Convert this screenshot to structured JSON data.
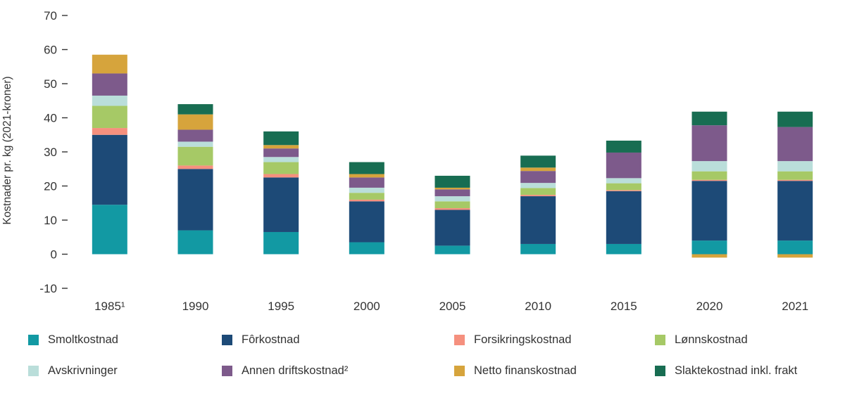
{
  "chart_data": {
    "type": "bar",
    "subtype": "stacked",
    "title": "",
    "xlabel": "",
    "ylabel": "Kostnader pr. kg (2021-kroner)",
    "ylim": [
      -10,
      70
    ],
    "yticks": [
      70,
      60,
      50,
      40,
      30,
      20,
      10,
      0,
      -10
    ],
    "grid": false,
    "legend_position": "bottom",
    "categories": [
      "1985¹",
      "1990",
      "1995",
      "2000",
      "2005",
      "2010",
      "2015",
      "2020",
      "2021"
    ],
    "series": [
      {
        "name": "Smoltkostnad",
        "color": "#1299a3",
        "values": [
          14.5,
          7.0,
          6.5,
          3.5,
          2.5,
          3.0,
          3.0,
          4.0,
          4.0
        ]
      },
      {
        "name": "Fôrkostnad",
        "color": "#1d4a77",
        "values": [
          20.5,
          18.0,
          16.0,
          12.0,
          10.5,
          14.0,
          15.5,
          17.5,
          17.5
        ]
      },
      {
        "name": "Forsikringskostnad",
        "color": "#f5907e",
        "values": [
          2.0,
          1.0,
          1.0,
          0.5,
          0.5,
          0.4,
          0.3,
          0.3,
          0.3
        ]
      },
      {
        "name": "Lønnskostnad",
        "color": "#a6c966",
        "values": [
          6.5,
          5.5,
          3.5,
          2.0,
          2.0,
          2.0,
          2.0,
          2.5,
          2.5
        ]
      },
      {
        "name": "Avskrivninger",
        "color": "#badeda",
        "values": [
          3.0,
          1.5,
          1.5,
          1.5,
          1.5,
          1.5,
          1.5,
          3.0,
          3.0
        ]
      },
      {
        "name": "Annen driftskostnad²",
        "color": "#7d5a8b",
        "values": [
          6.5,
          3.5,
          2.5,
          3.0,
          2.0,
          3.5,
          7.5,
          10.5,
          10.0
        ]
      },
      {
        "name": "Netto finanskostnad",
        "color": "#d6a43c",
        "values": [
          5.5,
          4.5,
          1.0,
          1.0,
          0.5,
          1.0,
          0.0,
          -1.0,
          -1.0
        ]
      },
      {
        "name": "Slaktekostnad inkl. frakt",
        "color": "#186d52",
        "values": [
          0.0,
          3.0,
          4.0,
          3.5,
          3.5,
          3.5,
          3.5,
          4.0,
          4.5
        ]
      }
    ]
  },
  "style": {
    "axis_text_color": "#333333",
    "background": "#ffffff"
  }
}
